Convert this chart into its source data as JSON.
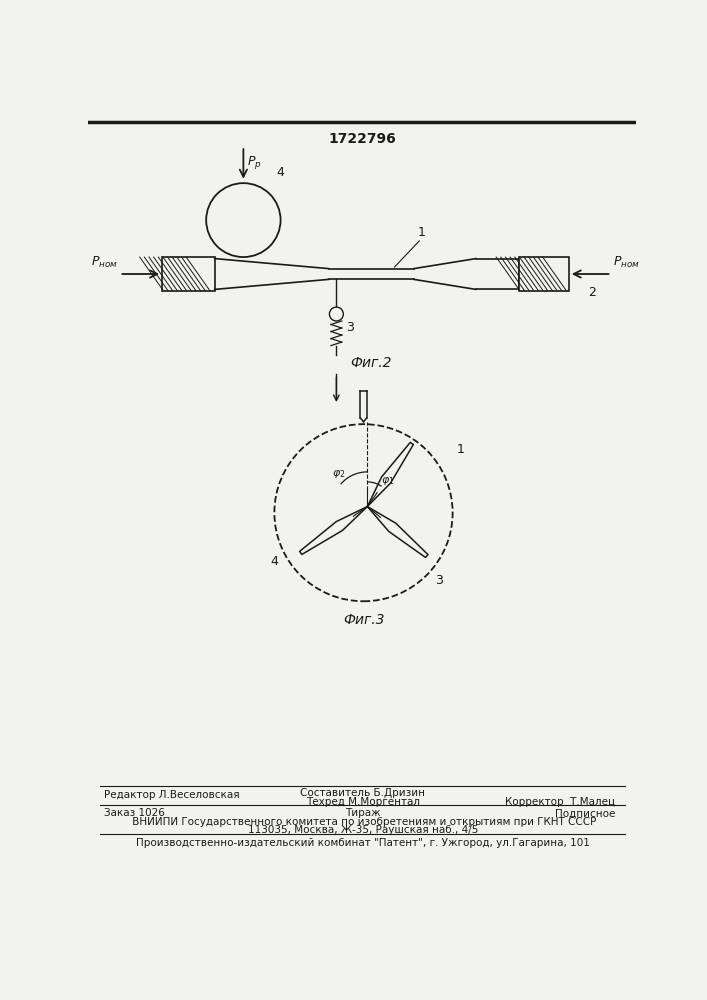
{
  "patent_number": "1722796",
  "background_color": "#f2f2ee",
  "line_color": "#1a1a1a",
  "fig2_label": "Фиг.2",
  "fig3_label": "Фиг.3",
  "footer": {
    "editor": "Редактор Л.Веселовская",
    "composer": "Составитель Б.Дризин",
    "techred": "Техред М.Моргентал",
    "corrector": "Корректор  Т.Малец",
    "zakaz": "Заказ 1026",
    "tirazh": "Тираж",
    "podpisnoe": "Подписное",
    "vniipи": " ВНИИПИ Государственного комитета по изобретениям и открытиям при ГКНТ СССР",
    "address": "113035, Москва, Ж-35, Раушская наб., 4/5",
    "publisher": "Производственно-издательский комбинат \"Патент\", г. Ужгород, ул.Гагарина, 101"
  }
}
